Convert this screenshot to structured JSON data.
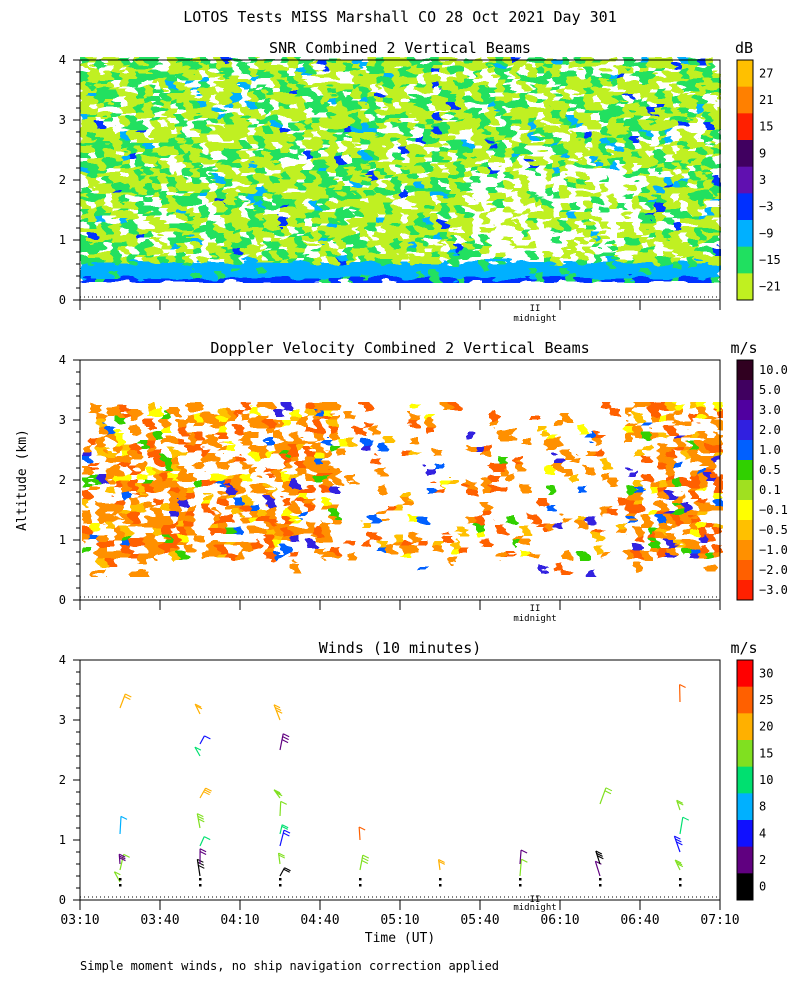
{
  "header": {
    "title": "LOTOS Tests MISS Marshall CO  28 Oct 2021 Day 301"
  },
  "shared": {
    "ylabel": "Altitude (km)",
    "xlabel": "Time (UT)",
    "y_ticks": [
      "0",
      "1",
      "2",
      "3",
      "4"
    ],
    "x_ticks": [
      "03:10",
      "03:40",
      "04:10",
      "04:40",
      "05:10",
      "05:40",
      "06:10",
      "06:40",
      "07:10"
    ],
    "midnight_label": "midnight",
    "midnight_mark": "II"
  },
  "footer": {
    "note": "Simple moment winds, no ship navigation correction applied"
  },
  "chart_data": [
    {
      "type": "heatmap",
      "title": "SNR Combined 2 Vertical Beams",
      "unit": "dB",
      "ylim": [
        0,
        4
      ],
      "x_range": [
        "03:10",
        "07:10"
      ],
      "colorbar_ticks": [
        "27",
        "21",
        "15",
        "9",
        "3",
        "−3",
        "−9",
        "−15",
        "−21"
      ],
      "colorbar_colors": [
        "#ffc000",
        "#ff8000",
        "#ff2000",
        "#400060",
        "#6010b0",
        "#0030ff",
        "#00b0ff",
        "#20e060",
        "#c0f020"
      ],
      "description_values": {
        "data_altitude_range_km": [
          0.3,
          4.0
        ],
        "strong_layer_km": [
          0.3,
          0.6
        ]
      }
    },
    {
      "type": "heatmap",
      "title": "Doppler Velocity Combined 2 Vertical Beams",
      "unit": "m/s",
      "ylim": [
        0,
        4
      ],
      "x_range": [
        "03:10",
        "07:10"
      ],
      "colorbar_ticks": [
        "10.0",
        "5.0",
        "3.0",
        "2.0",
        "1.0",
        "0.5",
        "0.1",
        "−0.1",
        "−0.5",
        "−1.0",
        "−2.0",
        "−3.0"
      ],
      "colorbar_colors": [
        "#300020",
        "#400060",
        "#5000a0",
        "#3020e0",
        "#0060ff",
        "#30d000",
        "#a0e020",
        "#ffff00",
        "#ffc000",
        "#ff9000",
        "#ff6000",
        "#ff2000"
      ],
      "description_values": {
        "data_altitude_range_km": [
          0.4,
          3.3
        ]
      }
    },
    {
      "type": "scatter",
      "title": "Winds (10 minutes)",
      "unit": "m/s",
      "ylim": [
        0,
        4
      ],
      "x_range": [
        "03:10",
        "07:10"
      ],
      "colorbar_ticks": [
        "30",
        "25",
        "20",
        "15",
        "10",
        "8",
        "4",
        "2",
        "0"
      ],
      "colorbar_colors": [
        "#ff0000",
        "#ff6000",
        "#ffb000",
        "#80e020",
        "#00e070",
        "#00b0ff",
        "#1010ff",
        "#600080",
        "#000000"
      ],
      "series": [
        {
          "time": "03:25",
          "altitudes": [
            0.3,
            0.5,
            0.6,
            1.1,
            3.2
          ],
          "colors": [
            "#80e020",
            "#80e020",
            "#600080",
            "#00b0ff",
            "#ffb000"
          ]
        },
        {
          "time": "03:55",
          "altitudes": [
            0.4,
            0.6,
            0.9,
            1.2,
            1.7,
            2.4,
            2.6,
            3.1
          ],
          "colors": [
            "#000000",
            "#600080",
            "#00e070",
            "#80e020",
            "#ffb000",
            "#00e070",
            "#1010ff",
            "#ffb000"
          ]
        },
        {
          "time": "04:25",
          "altitudes": [
            0.4,
            0.6,
            0.9,
            1.1,
            1.4,
            1.7,
            2.5,
            3.0
          ],
          "colors": [
            "#000000",
            "#80e020",
            "#1010ff",
            "#00e070",
            "#80e020",
            "#80e020",
            "#600080",
            "#ffb000"
          ]
        },
        {
          "time": "04:55",
          "altitudes": [
            0.5,
            1.0
          ],
          "colors": [
            "#80e020",
            "#ff6000"
          ]
        },
        {
          "time": "05:25",
          "altitudes": [
            0.5
          ],
          "colors": [
            "#ffb000"
          ]
        },
        {
          "time": "05:55",
          "altitudes": [
            0.4,
            0.6
          ],
          "colors": [
            "#80e020",
            "#600080"
          ]
        },
        {
          "time": "06:25",
          "altitudes": [
            0.4,
            0.6,
            1.6
          ],
          "colors": [
            "#600080",
            "#000000",
            "#80e020"
          ]
        },
        {
          "time": "06:55",
          "altitudes": [
            0.5,
            0.8,
            1.1,
            1.5,
            3.3
          ],
          "colors": [
            "#80e020",
            "#1010ff",
            "#00e070",
            "#80e020",
            "#ff6000"
          ]
        }
      ]
    }
  ]
}
